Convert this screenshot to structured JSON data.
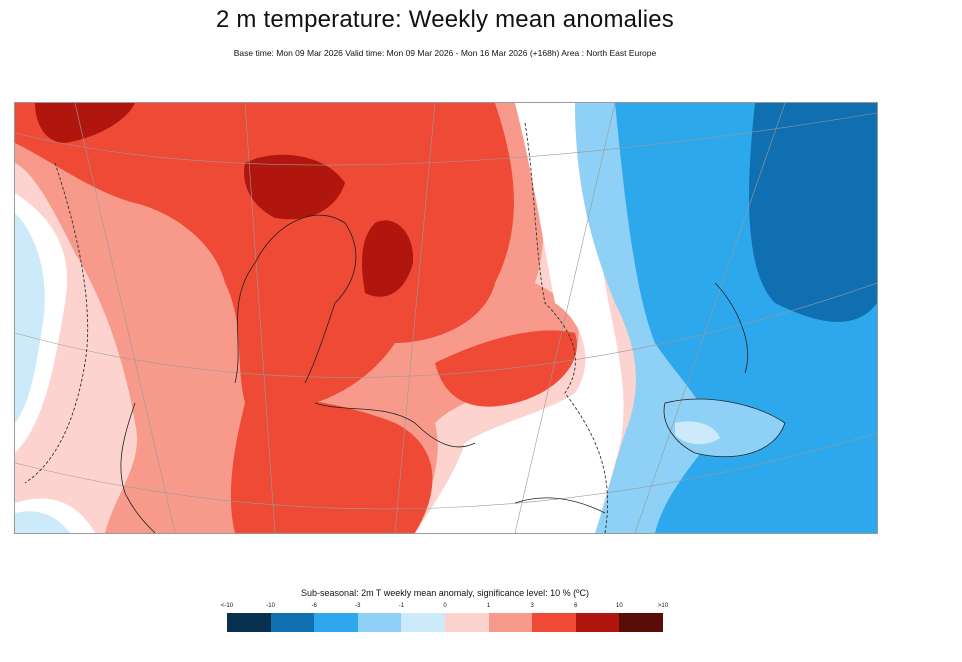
{
  "header": {
    "title": "2 m temperature: Weekly mean anomalies",
    "subtitle": "Base time: Mon 09 Mar 2026 Valid time: Mon 09 Mar 2026 - Mon 16 Mar 2026 (+168h) Area : North East Europe"
  },
  "map": {
    "area": "North East Europe",
    "variable": "2m T weekly mean anomaly",
    "pattern": {
      "warm_anomaly_region": "Western Europe, Scandinavia, Baltic",
      "cold_anomaly_region": "Russia, Eastern Europe, Caspian region"
    }
  },
  "legend": {
    "title": "Sub-seasonal: 2m T weekly mean anomaly, significance level: 10 % (ºC)",
    "labels": [
      "<-10",
      "-10",
      "-6",
      "-3",
      "-1",
      "0",
      "1",
      "3",
      "6",
      "10",
      ">10"
    ],
    "colors": [
      "#08304f",
      "#0f6fb0",
      "#2ea8ec",
      "#8ed0f6",
      "#cdeafb",
      "#fcd3cf",
      "#f79a8b",
      "#ef4a36",
      "#b0160e",
      "#5a0d06"
    ]
  }
}
